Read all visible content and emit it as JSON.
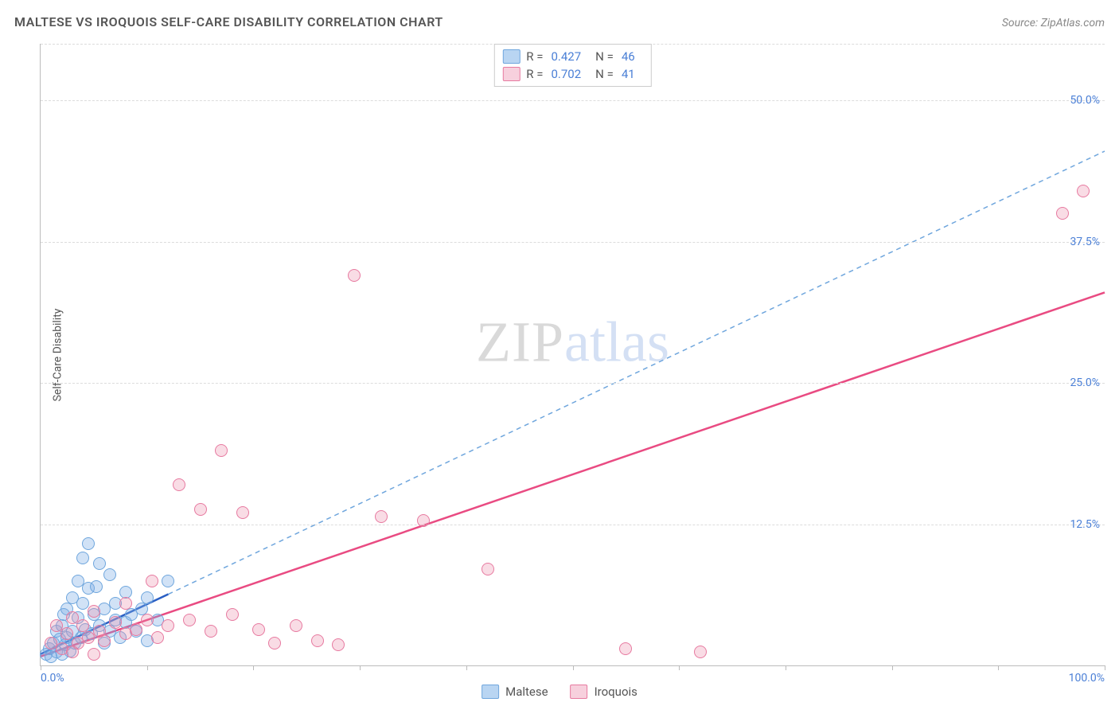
{
  "title": "MALTESE VS IROQUOIS SELF-CARE DISABILITY CORRELATION CHART",
  "source_label": "Source:",
  "source_name": "ZipAtlas.com",
  "y_axis_label": "Self-Care Disability",
  "watermark": {
    "part1": "ZIP",
    "part2": "atlas"
  },
  "chart": {
    "type": "scatter",
    "xlim": [
      0,
      100
    ],
    "ylim": [
      0,
      55
    ],
    "x_ticks": [
      0,
      10,
      20,
      30,
      40,
      50,
      60,
      70,
      80,
      90,
      100
    ],
    "x_tick_labels": {
      "0": "0.0%",
      "100": "100.0%"
    },
    "y_ticks": [
      12.5,
      25.0,
      37.5,
      50.0
    ],
    "y_tick_labels": [
      "12.5%",
      "25.0%",
      "37.5%",
      "50.0%"
    ],
    "grid_color": "#dcdcdc",
    "axis_color": "#bbbbbb",
    "background_color": "#ffffff",
    "tick_label_color": "#4a7fd6",
    "axis_label_color": "#555555",
    "axis_label_fontsize": 14,
    "title_fontsize": 16,
    "marker_radius": 8,
    "marker_border_width": 1.5,
    "series": [
      {
        "name": "Maltese",
        "fill_color": "rgba(122,172,230,0.35)",
        "stroke_color": "#6fa6dd",
        "swatch_fill": "#b9d5f2",
        "swatch_border": "#6fa6dd",
        "R": "0.427",
        "N": "46",
        "trend": {
          "x1": 0,
          "y1": 1.0,
          "x2": 12,
          "y2": 6.3,
          "dash": "none",
          "width": 2.5,
          "color": "#2a5fc4"
        },
        "trend_ext": {
          "x1": 12,
          "y1": 6.3,
          "x2": 100,
          "y2": 45.5,
          "dash": "6,5",
          "width": 1.5,
          "color": "#6fa6dd"
        },
        "points": [
          [
            0.5,
            1.0
          ],
          [
            0.8,
            1.5
          ],
          [
            1.0,
            0.8
          ],
          [
            1.2,
            2.0
          ],
          [
            1.5,
            1.2
          ],
          [
            1.5,
            3.0
          ],
          [
            1.8,
            2.3
          ],
          [
            2.0,
            1.0
          ],
          [
            2.0,
            3.5
          ],
          [
            2.2,
            4.5
          ],
          [
            2.3,
            1.8
          ],
          [
            2.5,
            2.5
          ],
          [
            2.5,
            5.0
          ],
          [
            2.8,
            1.3
          ],
          [
            3.0,
            3.0
          ],
          [
            3.0,
            6.0
          ],
          [
            3.2,
            2.0
          ],
          [
            3.5,
            4.2
          ],
          [
            3.5,
            7.5
          ],
          [
            3.8,
            2.5
          ],
          [
            4.0,
            5.5
          ],
          [
            4.0,
            9.5
          ],
          [
            4.2,
            3.2
          ],
          [
            4.5,
            6.8
          ],
          [
            4.5,
            10.8
          ],
          [
            4.8,
            2.8
          ],
          [
            5.0,
            4.5
          ],
          [
            5.2,
            7.0
          ],
          [
            5.5,
            3.5
          ],
          [
            5.5,
            9.0
          ],
          [
            6.0,
            2.0
          ],
          [
            6.0,
            5.0
          ],
          [
            6.5,
            3.0
          ],
          [
            6.5,
            8.0
          ],
          [
            7.0,
            4.0
          ],
          [
            7.0,
            5.5
          ],
          [
            7.5,
            2.5
          ],
          [
            8.0,
            3.8
          ],
          [
            8.0,
            6.5
          ],
          [
            8.5,
            4.5
          ],
          [
            9.0,
            3.0
          ],
          [
            9.5,
            5.0
          ],
          [
            10.0,
            2.2
          ],
          [
            10.0,
            6.0
          ],
          [
            11.0,
            4.0
          ],
          [
            12.0,
            7.5
          ]
        ]
      },
      {
        "name": "Iroquois",
        "fill_color": "rgba(236,140,170,0.30)",
        "stroke_color": "#e77aa0",
        "swatch_fill": "#f7d0dd",
        "swatch_border": "#e77aa0",
        "R": "0.702",
        "N": "41",
        "trend": {
          "x1": 0,
          "y1": 0.8,
          "x2": 100,
          "y2": 33.0,
          "dash": "none",
          "width": 2.5,
          "color": "#e94b82"
        },
        "points": [
          [
            1.0,
            2.0
          ],
          [
            1.5,
            3.5
          ],
          [
            2.0,
            1.5
          ],
          [
            2.5,
            2.8
          ],
          [
            3.0,
            4.2
          ],
          [
            3.5,
            2.0
          ],
          [
            4.0,
            3.5
          ],
          [
            4.5,
            2.5
          ],
          [
            5.0,
            4.8
          ],
          [
            5.5,
            3.0
          ],
          [
            6.0,
            2.2
          ],
          [
            7.0,
            3.8
          ],
          [
            8.0,
            2.8
          ],
          [
            8.0,
            5.5
          ],
          [
            9.0,
            3.2
          ],
          [
            10.0,
            4.0
          ],
          [
            11.0,
            2.5
          ],
          [
            12.0,
            3.5
          ],
          [
            13.0,
            16.0
          ],
          [
            14.0,
            4.0
          ],
          [
            15.0,
            13.8
          ],
          [
            16.0,
            3.0
          ],
          [
            17.0,
            19.0
          ],
          [
            18.0,
            4.5
          ],
          [
            19.0,
            13.5
          ],
          [
            20.5,
            3.2
          ],
          [
            22.0,
            2.0
          ],
          [
            24.0,
            3.5
          ],
          [
            26.0,
            2.2
          ],
          [
            28.0,
            1.8
          ],
          [
            29.5,
            34.5
          ],
          [
            32.0,
            13.2
          ],
          [
            36.0,
            12.8
          ],
          [
            42.0,
            8.5
          ],
          [
            55.0,
            1.5
          ],
          [
            62.0,
            1.2
          ],
          [
            96.0,
            40.0
          ],
          [
            98.0,
            42.0
          ],
          [
            5.0,
            1.0
          ],
          [
            10.5,
            7.5
          ],
          [
            3.0,
            1.2
          ]
        ]
      }
    ]
  },
  "legend_bottom": [
    {
      "label": "Maltese",
      "series": 0
    },
    {
      "label": "Iroquois",
      "series": 1
    }
  ]
}
